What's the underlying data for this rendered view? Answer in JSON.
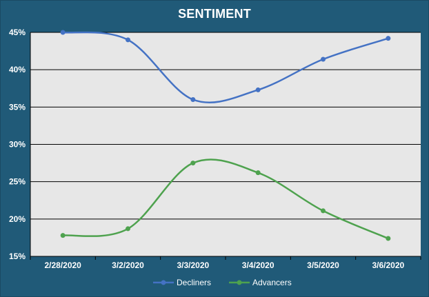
{
  "chart_data": {
    "type": "line",
    "title": "SENTIMENT",
    "categories": [
      "2/28/2020",
      "3/2/2020",
      "3/3/2020",
      "3/4/2020",
      "3/5/2020",
      "3/6/2020"
    ],
    "series": [
      {
        "name": "Decliners",
        "color": "#4472c4",
        "values": [
          45.0,
          44.0,
          36.0,
          37.3,
          41.4,
          44.2
        ]
      },
      {
        "name": "Advancers",
        "color": "#4ea24e",
        "values": [
          17.8,
          18.7,
          27.5,
          26.2,
          21.1,
          17.4
        ]
      }
    ],
    "y_ticks": [
      "15%",
      "20%",
      "25%",
      "30%",
      "35%",
      "40%",
      "45%"
    ],
    "ylim": [
      15,
      45
    ],
    "y_unit": "%",
    "grid": true,
    "legend": "bottom",
    "smooth": true,
    "colors": {
      "background": "#205a78",
      "plot_area": "#e7e7e7",
      "gridline": "#000000",
      "text": "#ffffff"
    }
  }
}
